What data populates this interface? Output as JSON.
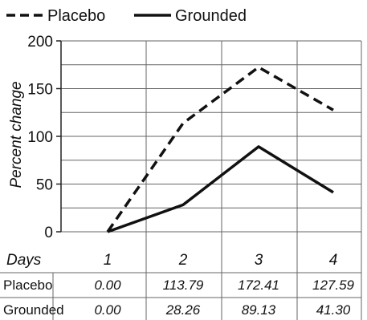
{
  "chart_data": {
    "type": "line",
    "categories": [
      "1",
      "2",
      "3",
      "4"
    ],
    "ylabel": "Percent change",
    "xlabel": "Days",
    "ylim": [
      0,
      200
    ],
    "yticks": [
      "0",
      "50",
      "100",
      "150",
      "200"
    ],
    "grid": true,
    "legend_position": "top-left",
    "series": [
      {
        "name": "Placebo",
        "style": "dashed",
        "color": "#111111",
        "values": [
          0,
          113.79,
          172.41,
          127.59
        ]
      },
      {
        "name": "Grounded",
        "style": "solid",
        "color": "#111111",
        "values": [
          0,
          28.26,
          89.13,
          41.3
        ]
      }
    ],
    "table": {
      "header_label": "Days",
      "rows": [
        {
          "label": "Placebo",
          "cells": [
            "0.00",
            "113.79",
            "172.41",
            "127.59"
          ]
        },
        {
          "label": "Grounded",
          "cells": [
            "0.00",
            "28.26",
            "89.13",
            "41.30"
          ]
        }
      ]
    }
  }
}
